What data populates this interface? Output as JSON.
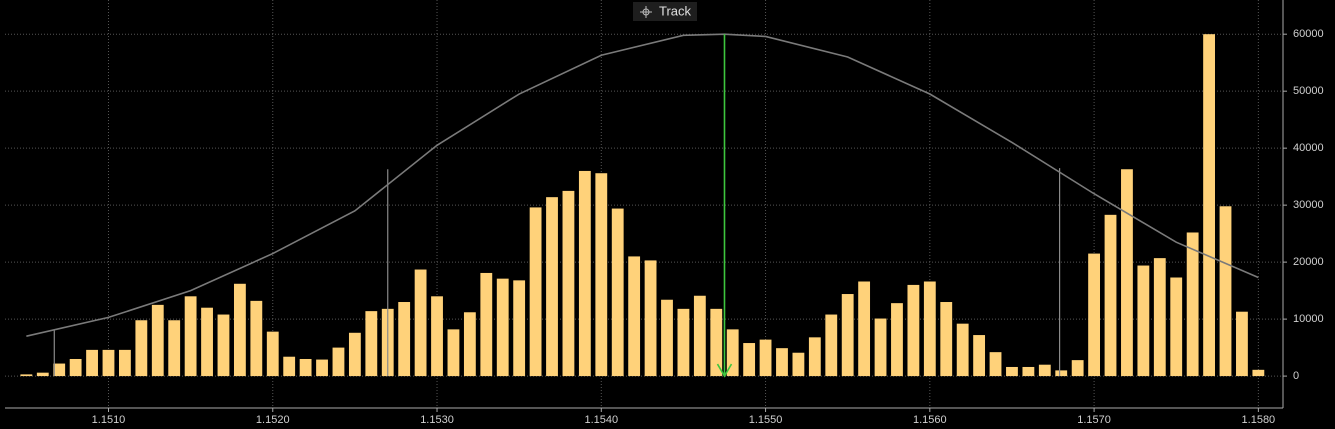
{
  "chart_data": {
    "type": "bar",
    "track_label": "Track",
    "color": "#ffd27a",
    "x": [
      1.1505,
      1.1506,
      1.1507,
      1.1508,
      1.1509,
      1.151,
      1.1511,
      1.1512,
      1.1513,
      1.1514,
      1.1515,
      1.1516,
      1.1517,
      1.1518,
      1.1519,
      1.152,
      1.1521,
      1.1522,
      1.1523,
      1.1524,
      1.1525,
      1.1526,
      1.1527,
      1.1528,
      1.1529,
      1.153,
      1.1531,
      1.1532,
      1.1533,
      1.1534,
      1.1535,
      1.1536,
      1.1537,
      1.1538,
      1.1539,
      1.154,
      1.1541,
      1.1542,
      1.1543,
      1.1544,
      1.1545,
      1.1546,
      1.1547,
      1.1548,
      1.1549,
      1.155,
      1.1551,
      1.1552,
      1.1553,
      1.1554,
      1.1555,
      1.1556,
      1.1557,
      1.1558,
      1.1559,
      1.156,
      1.1561,
      1.1562,
      1.1563,
      1.1564,
      1.1565,
      1.1566,
      1.1567,
      1.1568,
      1.1569,
      1.157,
      1.1571,
      1.1572,
      1.1573,
      1.1574,
      1.1575,
      1.1576,
      1.1577,
      1.1578,
      1.1579,
      1.158
    ],
    "values": [
      300,
      600,
      2200,
      3000,
      4600,
      4600,
      4600,
      9800,
      12500,
      9800,
      14000,
      12000,
      10800,
      16200,
      13200,
      7800,
      3400,
      3000,
      2900,
      5000,
      7600,
      11400,
      11800,
      13000,
      18700,
      14000,
      8200,
      11200,
      18100,
      17100,
      16800,
      29600,
      31400,
      32500,
      36000,
      35600,
      29400,
      21000,
      20300,
      13400,
      11800,
      14100,
      11800,
      8200,
      5800,
      6400,
      4900,
      4100,
      6800,
      10800,
      14400,
      16600,
      10100,
      12800,
      16000,
      16600,
      13000,
      9200,
      7200,
      4200,
      1600,
      1600,
      2000,
      1000,
      2800,
      21500,
      28300,
      36300,
      19400,
      20700,
      17300,
      25200,
      60000,
      29800,
      11300,
      1100
    ],
    "curve": {
      "color": "#7a7a7a",
      "x": [
        1.1505,
        1.151,
        1.1515,
        1.152,
        1.1525,
        1.153,
        1.1535,
        1.154,
        1.1545,
        1.15475,
        1.155,
        1.1555,
        1.156,
        1.1565,
        1.157,
        1.1575,
        1.158
      ],
      "values": [
        7000,
        10300,
        15000,
        21500,
        29000,
        40500,
        49500,
        56300,
        59800,
        60000,
        59600,
        56000,
        49500,
        41000,
        32000,
        23500,
        17300
      ]
    },
    "reference_lines": {
      "color": "#8a8a8a",
      "x": [
        1.15067,
        1.1527,
        1.15679
      ],
      "values": [
        8000,
        36300,
        36500
      ]
    },
    "marker": {
      "color": "#3ec63e",
      "x": 1.15475,
      "y": 60000
    },
    "xlim": [
      1.15037,
      1.15815
    ],
    "ylim": [
      -5600,
      66000
    ],
    "xticks": [
      {
        "value": 1.151,
        "label": "1.1510"
      },
      {
        "value": 1.152,
        "label": "1.1520"
      },
      {
        "value": 1.153,
        "label": "1.1530"
      },
      {
        "value": 1.154,
        "label": "1.1540"
      },
      {
        "value": 1.155,
        "label": "1.1550"
      },
      {
        "value": 1.156,
        "label": "1.1560"
      },
      {
        "value": 1.157,
        "label": "1.1570"
      },
      {
        "value": 1.158,
        "label": "1.1580"
      }
    ],
    "yticks": [
      0,
      10000,
      20000,
      30000,
      40000,
      50000,
      60000
    ],
    "grid": true
  }
}
